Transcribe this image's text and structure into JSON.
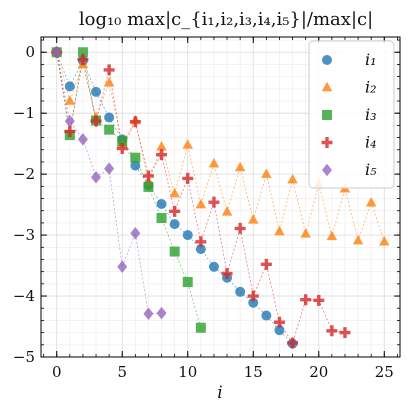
{
  "chart_data": {
    "type": "scatter",
    "title": "log₁₀ max|c_{i₁,i₂,i₃,i₄,i₅}|/max|c|",
    "xlabel": "i",
    "ylabel": "",
    "xlim": [
      -1.2,
      26.2
    ],
    "ylim": [
      -5,
      0.25
    ],
    "xticks": [
      0,
      5,
      10,
      15,
      20,
      25
    ],
    "xtick_labels": [
      "0",
      "5",
      "10",
      "15",
      "20",
      "25"
    ],
    "yticks": [
      0,
      -1,
      -2,
      -3,
      -4,
      -5
    ],
    "ytick_labels": [
      "0",
      "−1",
      "−2",
      "−3",
      "−4",
      "−5"
    ],
    "grid": true,
    "legend_position": "top-right",
    "series": [
      {
        "name": "i₁",
        "marker": "circle",
        "color": "#1f77b4",
        "x": [
          0,
          1,
          2,
          3,
          4,
          5,
          6,
          7,
          8,
          9,
          10,
          11,
          12,
          13,
          14,
          15,
          16,
          17,
          18
        ],
        "y": [
          0,
          -0.56,
          -0.14,
          -0.65,
          -1.07,
          -1.43,
          -1.86,
          -2.18,
          -2.49,
          -2.82,
          -3.0,
          -3.23,
          -3.52,
          -3.7,
          -3.93,
          -4.11,
          -4.32,
          -4.56,
          -4.78
        ]
      },
      {
        "name": "i₂",
        "marker": "triangle",
        "color": "#ff7f0e",
        "x": [
          0,
          1,
          2,
          3,
          4,
          5,
          6,
          7,
          8,
          9,
          10,
          11,
          12,
          13,
          14,
          15,
          16,
          17,
          18,
          19,
          20,
          21,
          22,
          23,
          24,
          25
        ],
        "y": [
          0,
          -0.8,
          -0.2,
          -1.07,
          -0.5,
          -1.5,
          -1.12,
          -2.13,
          -1.55,
          -2.32,
          -1.52,
          -2.5,
          -1.83,
          -2.62,
          -1.89,
          -2.75,
          -2.0,
          -2.94,
          -2.09,
          -2.98,
          -2.16,
          -3.02,
          -2.24,
          -3.09,
          -2.47,
          -3.11
        ]
      },
      {
        "name": "i₃",
        "marker": "square",
        "color": "#2ca02c",
        "x": [
          0,
          1,
          2,
          3,
          4,
          5,
          6,
          7,
          8,
          9,
          10,
          11
        ],
        "y": [
          0,
          -1.36,
          0,
          -1.12,
          -1.27,
          -1.46,
          -1.73,
          -2.21,
          -2.72,
          -3.27,
          -3.77,
          -4.52
        ]
      },
      {
        "name": "i₄",
        "marker": "plus",
        "color": "#d62728",
        "x": [
          0,
          1,
          2,
          3,
          4,
          5,
          6,
          7,
          8,
          9,
          10,
          11,
          12,
          13,
          14,
          15,
          16,
          17,
          18,
          19,
          20,
          21,
          22
        ],
        "y": [
          0,
          -1.3,
          -0.12,
          -1.13,
          -0.29,
          -1.58,
          -1.14,
          -2.03,
          -1.68,
          -2.61,
          -2.07,
          -3.11,
          -2.46,
          -3.63,
          -2.89,
          -4.0,
          -3.48,
          -4.43,
          -4.77,
          -4.06,
          -4.07,
          -4.57,
          -4.6
        ]
      },
      {
        "name": "i₅",
        "marker": "diamond",
        "color": "#9467bd",
        "x": [
          0,
          1,
          2,
          3,
          4,
          5,
          6,
          7,
          8
        ],
        "y": [
          0,
          -1.13,
          -1.43,
          -2.05,
          -1.91,
          -3.52,
          -2.97,
          -4.29,
          -4.28
        ]
      }
    ]
  }
}
